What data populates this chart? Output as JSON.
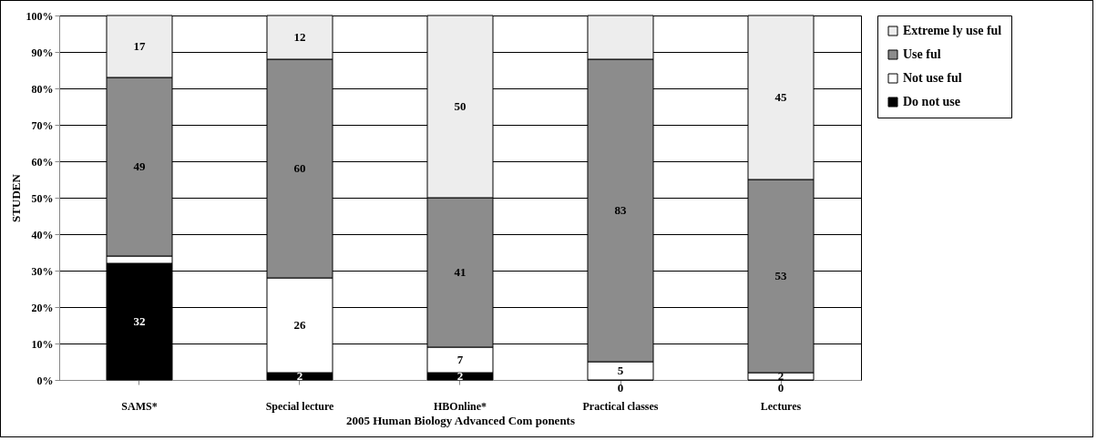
{
  "chart_data": {
    "type": "bar",
    "stacked": true,
    "xlabel": "2005 Human Biology Advanced Com ponents",
    "ylabel": "STUDEN",
    "categories": [
      "SAMS*",
      "Special lecture",
      "HBOnline*",
      "Practical classes",
      "Lectures"
    ],
    "series": [
      {
        "name": "Do not use",
        "color": "#000000",
        "values": [
          32,
          2,
          2,
          0,
          0
        ],
        "value_labels": [
          "32",
          "2",
          "2",
          "0",
          "0"
        ]
      },
      {
        "name": "Not use ful",
        "color": "#ffffff",
        "values": [
          2,
          26,
          7,
          5,
          2
        ],
        "value_labels": [
          null,
          "26",
          "7",
          "5",
          "2"
        ]
      },
      {
        "name": "Use ful",
        "color": "#8c8c8c",
        "values": [
          49,
          60,
          41,
          83,
          53
        ],
        "value_labels": [
          "49",
          "60",
          "41",
          "83",
          "53"
        ]
      },
      {
        "name": "Extreme ly use ful",
        "color": "#ededed",
        "values": [
          17,
          12,
          50,
          12,
          45
        ],
        "value_labels": [
          "17",
          "12",
          "50",
          null,
          "45"
        ]
      }
    ],
    "ylim": [
      0,
      100
    ],
    "yticks": [
      {
        "value": 0,
        "label": "0%"
      },
      {
        "value": 10,
        "label": "10%"
      },
      {
        "value": 20,
        "label": "20%"
      },
      {
        "value": 30,
        "label": "30%"
      },
      {
        "value": 40,
        "label": "40%"
      },
      {
        "value": 50,
        "label": "50%"
      },
      {
        "value": 60,
        "label": "60%"
      },
      {
        "value": 70,
        "label": "70%"
      },
      {
        "value": 80,
        "label": "80%"
      },
      {
        "value": 90,
        "label": "90%"
      },
      {
        "value": 100,
        "label": "100%"
      }
    ],
    "grid": "y",
    "legend": "right"
  }
}
